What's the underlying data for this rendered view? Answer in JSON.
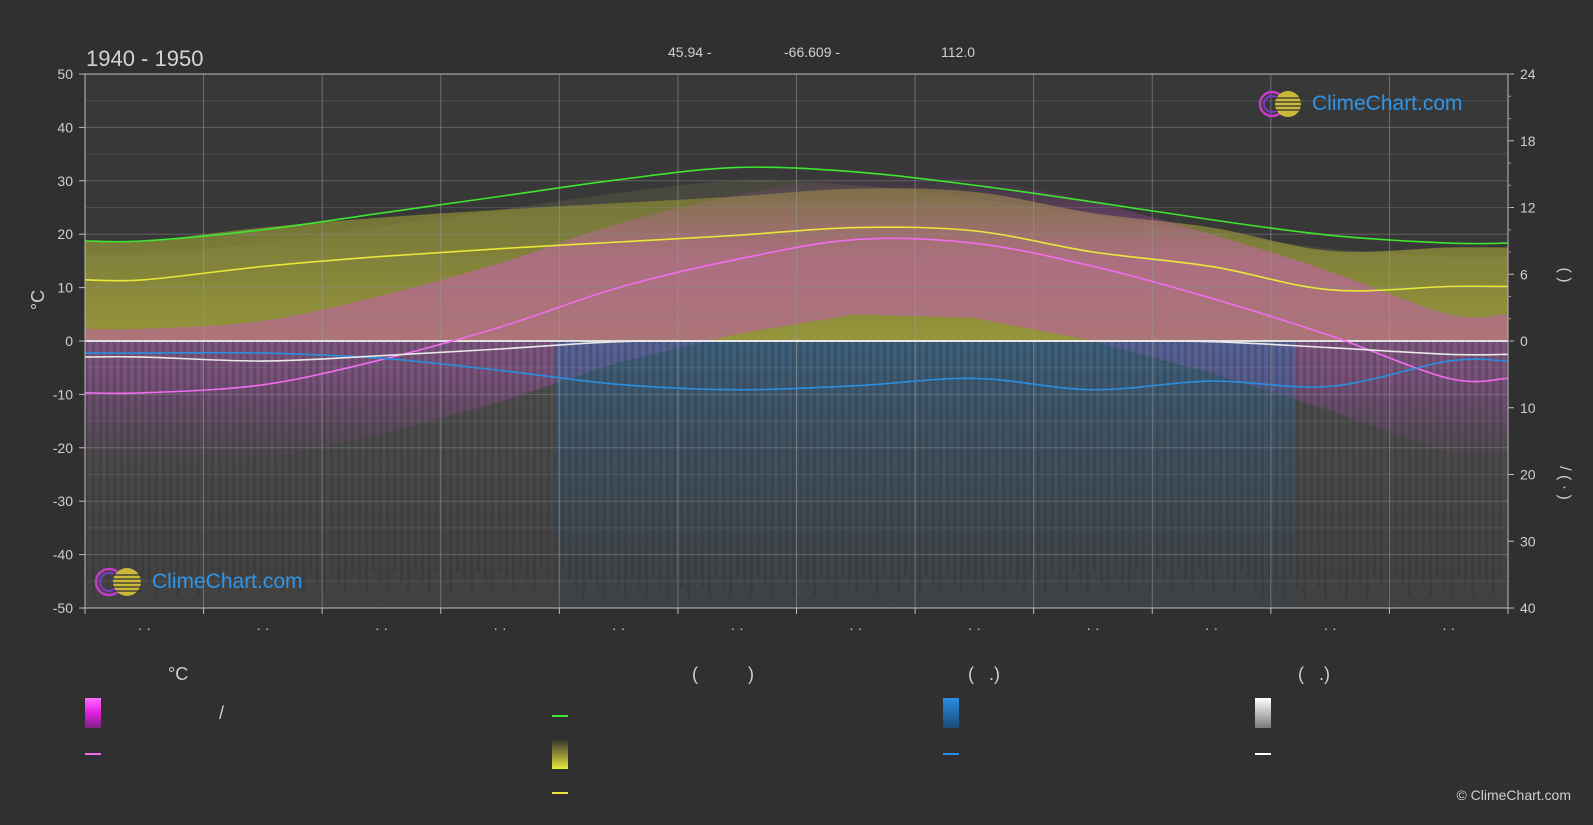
{
  "header": {
    "period": "1940 - 1950",
    "lat": "45.94 -",
    "lon": "-66.609 -",
    "elev": "112.0"
  },
  "axes": {
    "left_label": "°C",
    "right_top_label": "(    )",
    "right_bottom_label": "/     (  ·  )"
  },
  "legend": {
    "col1_title": "°C",
    "col2_title": "(          )",
    "col3_title": "(   .)",
    "col4_title": "(   .)",
    "range_label": "/"
  },
  "brand": {
    "text": "ClimeChart.com",
    "copyright": "© ClimeChart.com"
  },
  "colors": {
    "background": "#303030",
    "daylight": "#3ee62f",
    "sunshine": "#e8e83a",
    "temp_mean": "#f26cf0",
    "rain": "#2a8ee0",
    "snow": "#e8e8e8",
    "accent_blue": "#2f95e8"
  },
  "chart_data": {
    "type": "line",
    "x_categories": [
      "· ·",
      "· ·",
      "· ·",
      "· ·",
      "· ·",
      "· ·",
      "· ·",
      "· ·",
      "· ·",
      "· ·",
      "· ·",
      "· ·"
    ],
    "left_axis": {
      "label": "°C",
      "ticks": [
        50,
        40,
        30,
        20,
        10,
        0,
        -10,
        -20,
        -30,
        -40,
        -50
      ],
      "range": [
        -50,
        50
      ]
    },
    "right_axis_top": {
      "ticks": [
        24,
        18,
        12,
        6,
        0
      ],
      "range": [
        0,
        24
      ]
    },
    "right_axis_bottom": {
      "ticks": [
        0,
        10,
        20,
        30,
        40
      ],
      "range": [
        0,
        40
      ]
    },
    "grid": true,
    "series": [
      {
        "key": "daylight",
        "axis": "right_top",
        "values": [
          9.0,
          10.0,
          11.5,
          13.0,
          14.5,
          15.6,
          15.2,
          14.0,
          12.5,
          10.9,
          9.5,
          8.8
        ]
      },
      {
        "key": "sunshine",
        "axis": "right_top",
        "values": [
          5.5,
          6.7,
          7.6,
          8.3,
          8.9,
          9.5,
          10.2,
          9.9,
          8.0,
          6.7,
          4.6,
          4.9
        ]
      },
      {
        "key": "temp_mean",
        "axis": "left",
        "values": [
          -9.7,
          -8.2,
          -3.5,
          2.6,
          10.0,
          15.3,
          19.0,
          18.3,
          14.0,
          8.0,
          1.0,
          -7.0
        ]
      },
      {
        "key": "rain",
        "axis": "right_bottom",
        "values": [
          1.8,
          1.8,
          2.6,
          4.4,
          6.5,
          7.3,
          6.7,
          5.6,
          7.3,
          6.0,
          6.8,
          3.0
        ]
      },
      {
        "key": "snow",
        "axis": "right_bottom",
        "values": [
          2.4,
          3.0,
          2.2,
          1.2,
          0.1,
          0.0,
          0.0,
          0.0,
          0.0,
          0.1,
          1.0,
          2.0
        ]
      }
    ]
  }
}
